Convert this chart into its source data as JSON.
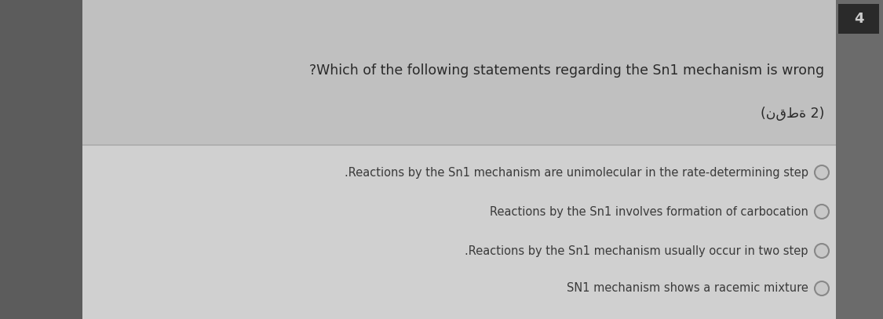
{
  "bg_color": "#6b6b6b",
  "outer_left_color": "#5a5a5a",
  "panel_color": "#c8c8c8",
  "header_color": "#c0c0c0",
  "answer_color": "#d0d0d0",
  "number_box_color": "#2a2a2a",
  "number_text": "4",
  "number_text_color": "#cccccc",
  "question_line1": "?Which of the following statements regarding the Sn1 mechanism is wrong",
  "question_line2": "(نقطة 2)",
  "question_text_color": "#2a2a2a",
  "options": [
    ".Reactions by the Sn1 mechanism are unimolecular in the rate-determining step",
    "Reactions by the Sn1 involves formation of carbocation",
    ".Reactions by the Sn1 mechanism usually occur in two step",
    "SN1 mechanism shows a racemic mixture"
  ],
  "option_text_color": "#3a3a3a",
  "radio_edge_color": "#888888",
  "radio_face_color": "#c8c8c8",
  "title_fontsize": 12.5,
  "option_fontsize": 10.5,
  "number_fontsize": 13
}
